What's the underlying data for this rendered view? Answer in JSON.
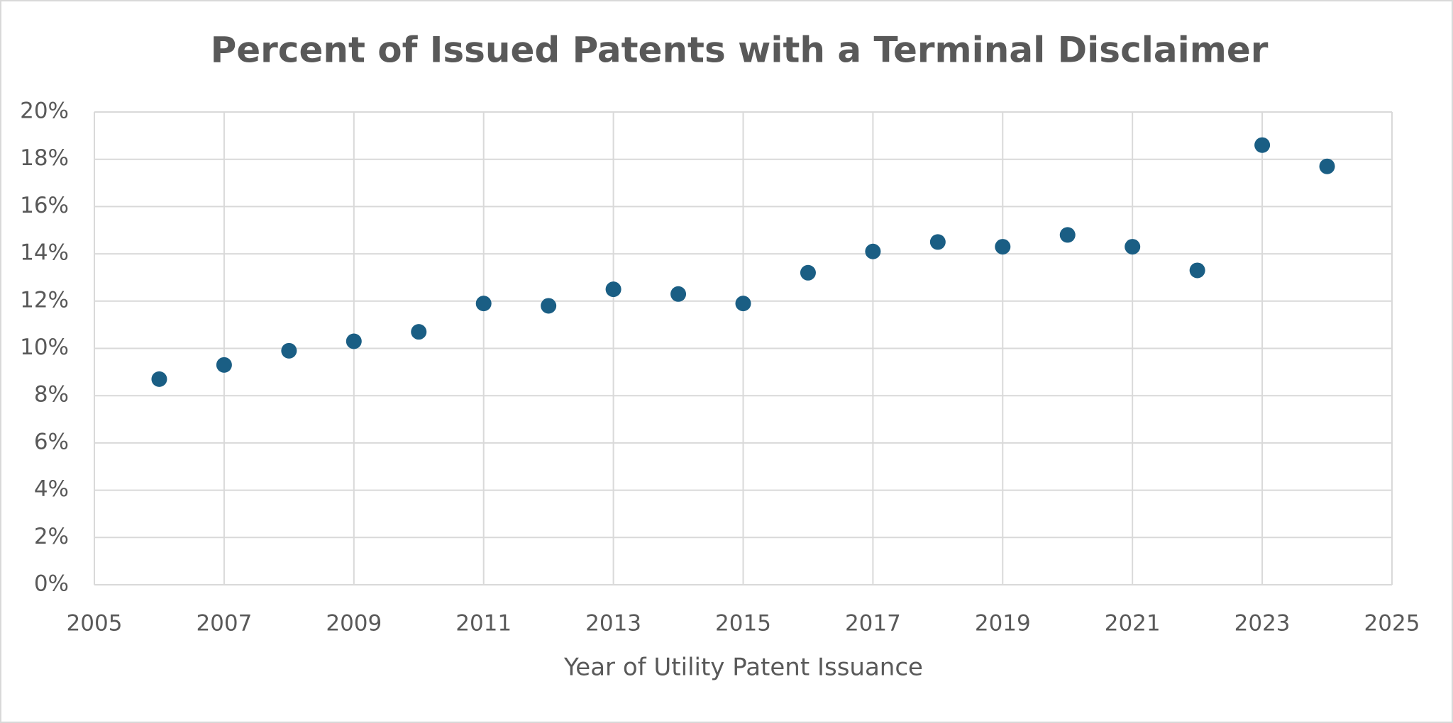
{
  "chart_data": {
    "type": "scatter",
    "title": "Percent of Issued Patents with a Terminal Disclaimer",
    "x_label": "Year of Utility Patent Issuance",
    "x": [
      2006,
      2007,
      2008,
      2009,
      2010,
      2011,
      2012,
      2013,
      2014,
      2015,
      2016,
      2017,
      2018,
      2019,
      2020,
      2021,
      2022,
      2023,
      2024
    ],
    "values": [
      8.7,
      9.3,
      9.9,
      10.3,
      10.7,
      11.9,
      11.8,
      12.5,
      12.3,
      11.9,
      13.2,
      14.1,
      14.5,
      14.3,
      14.8,
      14.3,
      13.3,
      18.6,
      17.7
    ],
    "color": "#1a5e84",
    "xlim": [
      2005,
      2025
    ],
    "xticks": [
      2005,
      2007,
      2009,
      2011,
      2013,
      2015,
      2017,
      2019,
      2021,
      2023,
      2025
    ],
    "ylim": [
      0,
      20
    ],
    "yticks": [
      {
        "value": 0,
        "label": "0%"
      },
      {
        "value": 2,
        "label": "2%"
      },
      {
        "value": 4,
        "label": "4%"
      },
      {
        "value": 6,
        "label": "6%"
      },
      {
        "value": 8,
        "label": "8%"
      },
      {
        "value": 10,
        "label": "10%"
      },
      {
        "value": 12,
        "label": "12%"
      },
      {
        "value": 14,
        "label": "14%"
      },
      {
        "value": 16,
        "label": "16%"
      },
      {
        "value": 18,
        "label": "18%"
      },
      {
        "value": 20,
        "label": "20%"
      }
    ],
    "grid": true
  }
}
